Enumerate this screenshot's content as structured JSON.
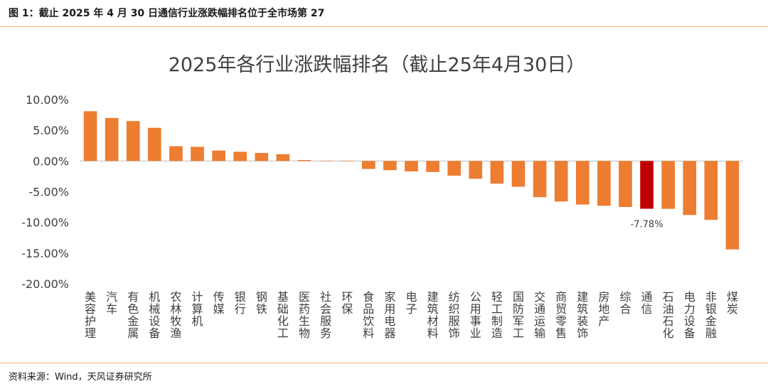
{
  "caption": "图 1：截止 2025 年 4 月 30 日通信行业涨跌幅排名位于全市场第 27",
  "source": "资料来源：Wind，天风证券研究所",
  "chart_data": {
    "type": "bar",
    "title": "2025年各行业涨跌幅排名（截止25年4月30日）",
    "categories": [
      "美容护理",
      "汽车",
      "有色金属",
      "机械设备",
      "农林牧渔",
      "计算机",
      "传媒",
      "银行",
      "钢铁",
      "基础化工",
      "医药生物",
      "社会服务",
      "环保",
      "食品饮料",
      "家用电器",
      "电子",
      "建筑材料",
      "纺织服饰",
      "公用事业",
      "轻工制造",
      "国防军工",
      "交通运输",
      "商贸零售",
      "建筑装饰",
      "房地产",
      "综合",
      "通信",
      "石油石化",
      "电力设备",
      "非银金融",
      "煤炭"
    ],
    "values": [
      8.1,
      7.0,
      6.5,
      5.4,
      2.4,
      2.3,
      1.7,
      1.5,
      1.3,
      1.1,
      0.15,
      0.05,
      0.0,
      -1.3,
      -1.5,
      -1.7,
      -1.8,
      -2.4,
      -2.9,
      -3.7,
      -4.2,
      -5.9,
      -6.6,
      -7.1,
      -7.3,
      -7.5,
      -7.78,
      -7.8,
      -8.8,
      -9.6,
      -14.4
    ],
    "ylim": [
      -20,
      10
    ],
    "yticks": [
      10,
      5,
      0,
      -5,
      -10,
      -15,
      -20
    ],
    "ytick_labels": [
      "10.00%",
      "5.00%",
      "0.00%",
      "-5.00%",
      "-10.00%",
      "-15.00%",
      "-20.00%"
    ],
    "annotation": "-7.78%",
    "highlight_category": "通信",
    "colors": {
      "bar": "#ed7d31",
      "highlight": "#c00000",
      "axis": "#bfbfbf",
      "text": "#404040"
    }
  }
}
